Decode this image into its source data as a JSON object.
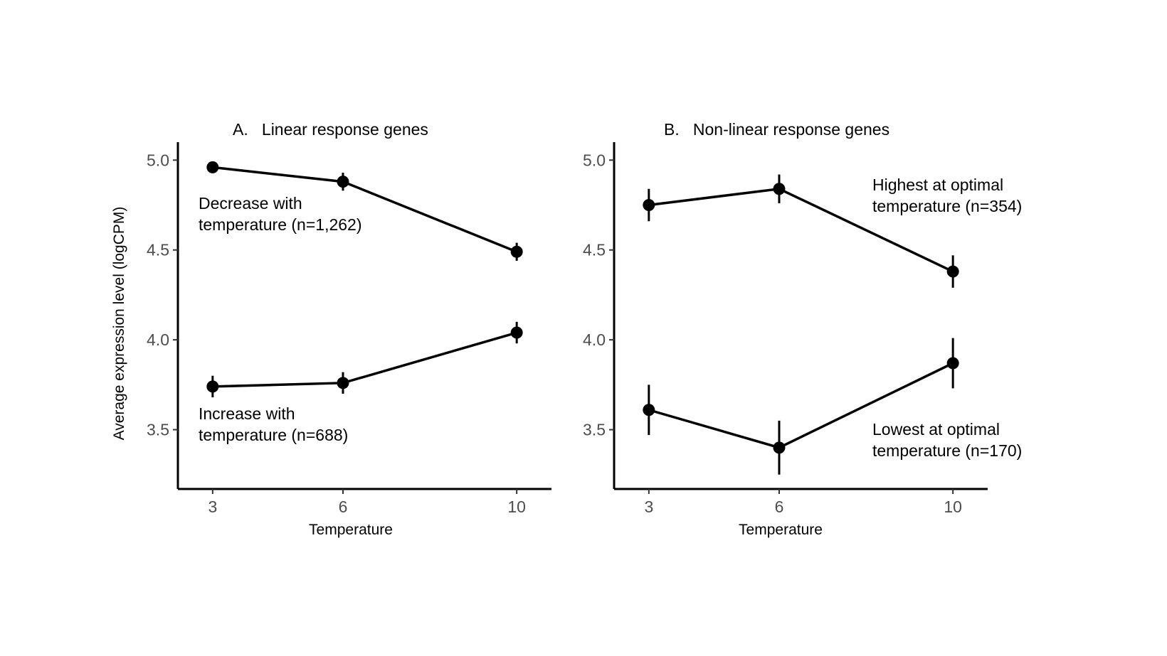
{
  "y_axis_label": "Average expression level (logCPM)",
  "chart_data": [
    {
      "type": "line",
      "title": "A.   Linear response genes",
      "xlabel": "Temperature",
      "ylabel": "Average expression level (logCPM)",
      "x": [
        3,
        6,
        10
      ],
      "x_ticks": [
        "3",
        "6",
        "10"
      ],
      "y_ticks": [
        "3.5",
        "4.0",
        "4.5",
        "5.0"
      ],
      "xlim": [
        2.2,
        10.8
      ],
      "ylim": [
        3.17,
        5.1
      ],
      "grid": false,
      "series": [
        {
          "values": [
            4.96,
            4.88,
            4.49
          ],
          "error": [
            0.02,
            0.05,
            0.05
          ],
          "annotation": [
            "Decrease with",
            "temperature (n=1,262)"
          ]
        },
        {
          "values": [
            3.74,
            3.76,
            4.04
          ],
          "error": [
            0.06,
            0.06,
            0.06
          ],
          "annotation": [
            "Increase with",
            "temperature (n=688)"
          ]
        }
      ]
    },
    {
      "type": "line",
      "title": "B.   Non-linear response genes",
      "xlabel": "Temperature",
      "ylabel": "",
      "x": [
        3,
        6,
        10
      ],
      "x_ticks": [
        "3",
        "6",
        "10"
      ],
      "y_ticks": [
        "3.5",
        "4.0",
        "4.5",
        "5.0"
      ],
      "xlim": [
        2.2,
        10.8
      ],
      "ylim": [
        3.17,
        5.1
      ],
      "grid": false,
      "series": [
        {
          "values": [
            4.75,
            4.84,
            4.38
          ],
          "error": [
            0.09,
            0.08,
            0.09
          ],
          "annotation": [
            "Highest at optimal",
            "temperature (n=354)"
          ]
        },
        {
          "values": [
            3.61,
            3.4,
            3.87
          ],
          "error": [
            0.14,
            0.15,
            0.14
          ],
          "annotation": [
            "Lowest at optimal",
            "temperature (n=170)"
          ]
        }
      ]
    }
  ]
}
